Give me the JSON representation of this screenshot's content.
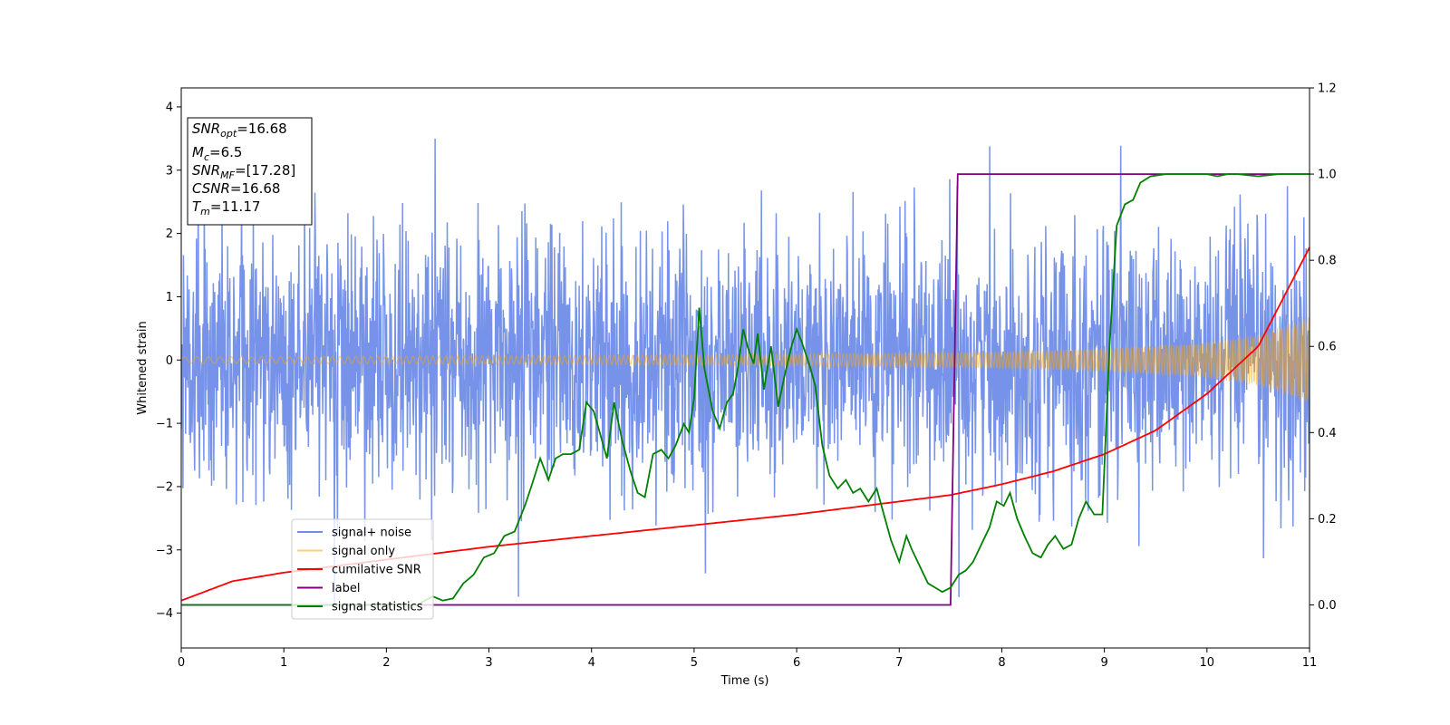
{
  "chart_data": {
    "type": "line",
    "title": "",
    "xlabel": "Time (s)",
    "ylabel_left": "Whitened strain",
    "ylabel_right": "",
    "xlim": [
      0,
      11
    ],
    "ylim_left": [
      -4.55,
      4.3
    ],
    "ylim_right": [
      -0.1,
      1.2
    ],
    "x_ticks": [
      0,
      1,
      2,
      3,
      4,
      5,
      6,
      7,
      8,
      9,
      10,
      11
    ],
    "y_left_ticks": [
      -4,
      -3,
      -2,
      -1,
      0,
      1,
      2,
      3,
      4
    ],
    "y_right_ticks": [
      0.0,
      0.2,
      0.4,
      0.6,
      0.8,
      1.0,
      1.2
    ],
    "grid": false,
    "legend_position": "lower-left",
    "legend": [
      {
        "name": "signal+ noise",
        "color": "#4169e1"
      },
      {
        "name": "signal only",
        "color": "#ffa500"
      },
      {
        "name": "cumilative SNR",
        "color": "#ff0000"
      },
      {
        "name": "label",
        "color": "#800080"
      },
      {
        "name": "signal statistics",
        "color": "#008000"
      }
    ],
    "annotation": {
      "lines": [
        {
          "sym": "SNR",
          "sub": "opt",
          "val": "=16.68"
        },
        {
          "sym": "M",
          "sub": "c",
          "val": "=6.5"
        },
        {
          "sym": "SNR",
          "sub": "MF",
          "val": "=[17.28]"
        },
        {
          "sym": "CSNR",
          "sub": "",
          "val": "=16.68"
        },
        {
          "sym": "T",
          "sub": "m",
          "val": "=11.17"
        }
      ]
    },
    "series": [
      {
        "name": "signal+ noise",
        "axis": "left",
        "color": "#4169e1",
        "noise_sigma": 1.0,
        "approx_range": [
          -4.15,
          3.9
        ]
      },
      {
        "name": "signal only",
        "axis": "left",
        "color": "#ffa500",
        "envelope": {
          "x": [
            0,
            2,
            4,
            6,
            8,
            9,
            10,
            10.5,
            11
          ],
          "amplitude": [
            0.05,
            0.06,
            0.07,
            0.09,
            0.13,
            0.18,
            0.28,
            0.4,
            0.68
          ]
        }
      },
      {
        "name": "cumilative SNR",
        "axis": "right",
        "color": "#ff0000",
        "x": [
          0,
          0.5,
          1,
          2,
          3,
          4,
          5,
          6,
          7,
          7.5,
          8,
          8.5,
          9,
          9.5,
          10,
          10.5,
          11
        ],
        "y": [
          0.01,
          0.055,
          0.075,
          0.105,
          0.135,
          0.16,
          0.185,
          0.21,
          0.24,
          0.255,
          0.28,
          0.31,
          0.35,
          0.405,
          0.49,
          0.6,
          0.83
        ]
      },
      {
        "name": "label",
        "axis": "right",
        "color": "#800080",
        "x": [
          0,
          7.5,
          7.57,
          11
        ],
        "y": [
          0,
          0,
          1,
          1
        ]
      },
      {
        "name": "signal statistics",
        "axis": "right",
        "color": "#008000",
        "x": [
          0,
          2.3,
          2.45,
          2.55,
          2.65,
          2.75,
          2.85,
          2.95,
          3.05,
          3.15,
          3.25,
          3.35,
          3.42,
          3.5,
          3.58,
          3.65,
          3.72,
          3.8,
          3.88,
          3.95,
          4.02,
          4.08,
          4.15,
          4.22,
          4.3,
          4.38,
          4.45,
          4.52,
          4.6,
          4.68,
          4.75,
          4.82,
          4.9,
          4.95,
          5.0,
          5.05,
          5.1,
          5.18,
          5.25,
          5.32,
          5.38,
          5.42,
          5.48,
          5.52,
          5.58,
          5.62,
          5.68,
          5.75,
          5.82,
          5.88,
          5.95,
          6.0,
          6.05,
          6.12,
          6.18,
          6.25,
          6.32,
          6.4,
          6.48,
          6.55,
          6.62,
          6.7,
          6.78,
          6.85,
          6.92,
          7.0,
          7.07,
          7.12,
          7.2,
          7.28,
          7.35,
          7.42,
          7.5,
          7.58,
          7.65,
          7.72,
          7.8,
          7.88,
          7.95,
          8.02,
          8.08,
          8.15,
          8.22,
          8.3,
          8.38,
          8.45,
          8.52,
          8.6,
          8.68,
          8.75,
          8.82,
          8.9,
          8.98,
          9.05,
          9.12,
          9.2,
          9.28,
          9.35,
          9.45,
          9.6,
          9.8,
          10.0,
          10.1,
          10.2,
          10.3,
          10.5,
          10.7,
          10.9,
          11
        ],
        "y": [
          0,
          0.0,
          0.02,
          0.01,
          0.015,
          0.05,
          0.07,
          0.11,
          0.12,
          0.16,
          0.17,
          0.23,
          0.28,
          0.34,
          0.29,
          0.34,
          0.35,
          0.35,
          0.36,
          0.47,
          0.45,
          0.4,
          0.34,
          0.47,
          0.38,
          0.31,
          0.26,
          0.25,
          0.35,
          0.36,
          0.34,
          0.37,
          0.42,
          0.4,
          0.48,
          0.69,
          0.55,
          0.45,
          0.41,
          0.47,
          0.49,
          0.54,
          0.64,
          0.6,
          0.56,
          0.63,
          0.5,
          0.6,
          0.46,
          0.53,
          0.6,
          0.64,
          0.61,
          0.56,
          0.51,
          0.37,
          0.3,
          0.27,
          0.29,
          0.26,
          0.27,
          0.24,
          0.27,
          0.21,
          0.15,
          0.1,
          0.16,
          0.13,
          0.09,
          0.05,
          0.04,
          0.03,
          0.04,
          0.07,
          0.08,
          0.1,
          0.14,
          0.18,
          0.24,
          0.23,
          0.26,
          0.2,
          0.16,
          0.12,
          0.11,
          0.14,
          0.16,
          0.13,
          0.14,
          0.2,
          0.24,
          0.21,
          0.21,
          0.6,
          0.88,
          0.93,
          0.94,
          0.98,
          0.995,
          1.0,
          1.0,
          1.0,
          0.995,
          1.0,
          1.0,
          0.995,
          1.0,
          1.0,
          1.0
        ]
      }
    ]
  }
}
